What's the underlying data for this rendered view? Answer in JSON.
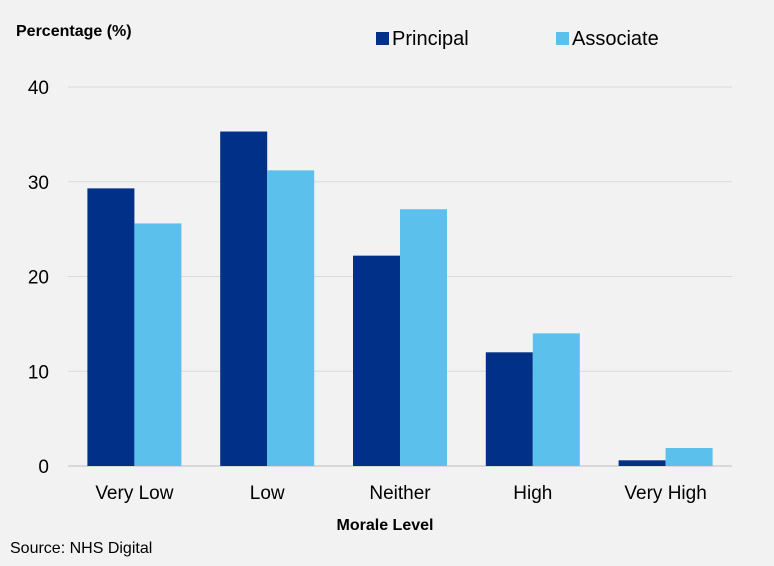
{
  "chart_data": {
    "type": "bar",
    "ylabel": "Percentage (%)",
    "xlabel": "Morale Level",
    "categories": [
      "Very Low",
      "Low",
      "Neither",
      "High",
      "Very High"
    ],
    "series": [
      {
        "name": "Principal",
        "values": [
          29.3,
          35.3,
          22.2,
          12.0,
          0.6
        ],
        "color": "#003087"
      },
      {
        "name": "Associate",
        "values": [
          25.6,
          31.2,
          27.1,
          14.0,
          1.9
        ],
        "color": "#5bc0eb"
      }
    ],
    "ylim": [
      0,
      40
    ],
    "yticks": [
      0,
      10,
      20,
      30,
      40
    ],
    "grid": true,
    "legend_position": "top-right"
  },
  "source": "Source: NHS Digital"
}
